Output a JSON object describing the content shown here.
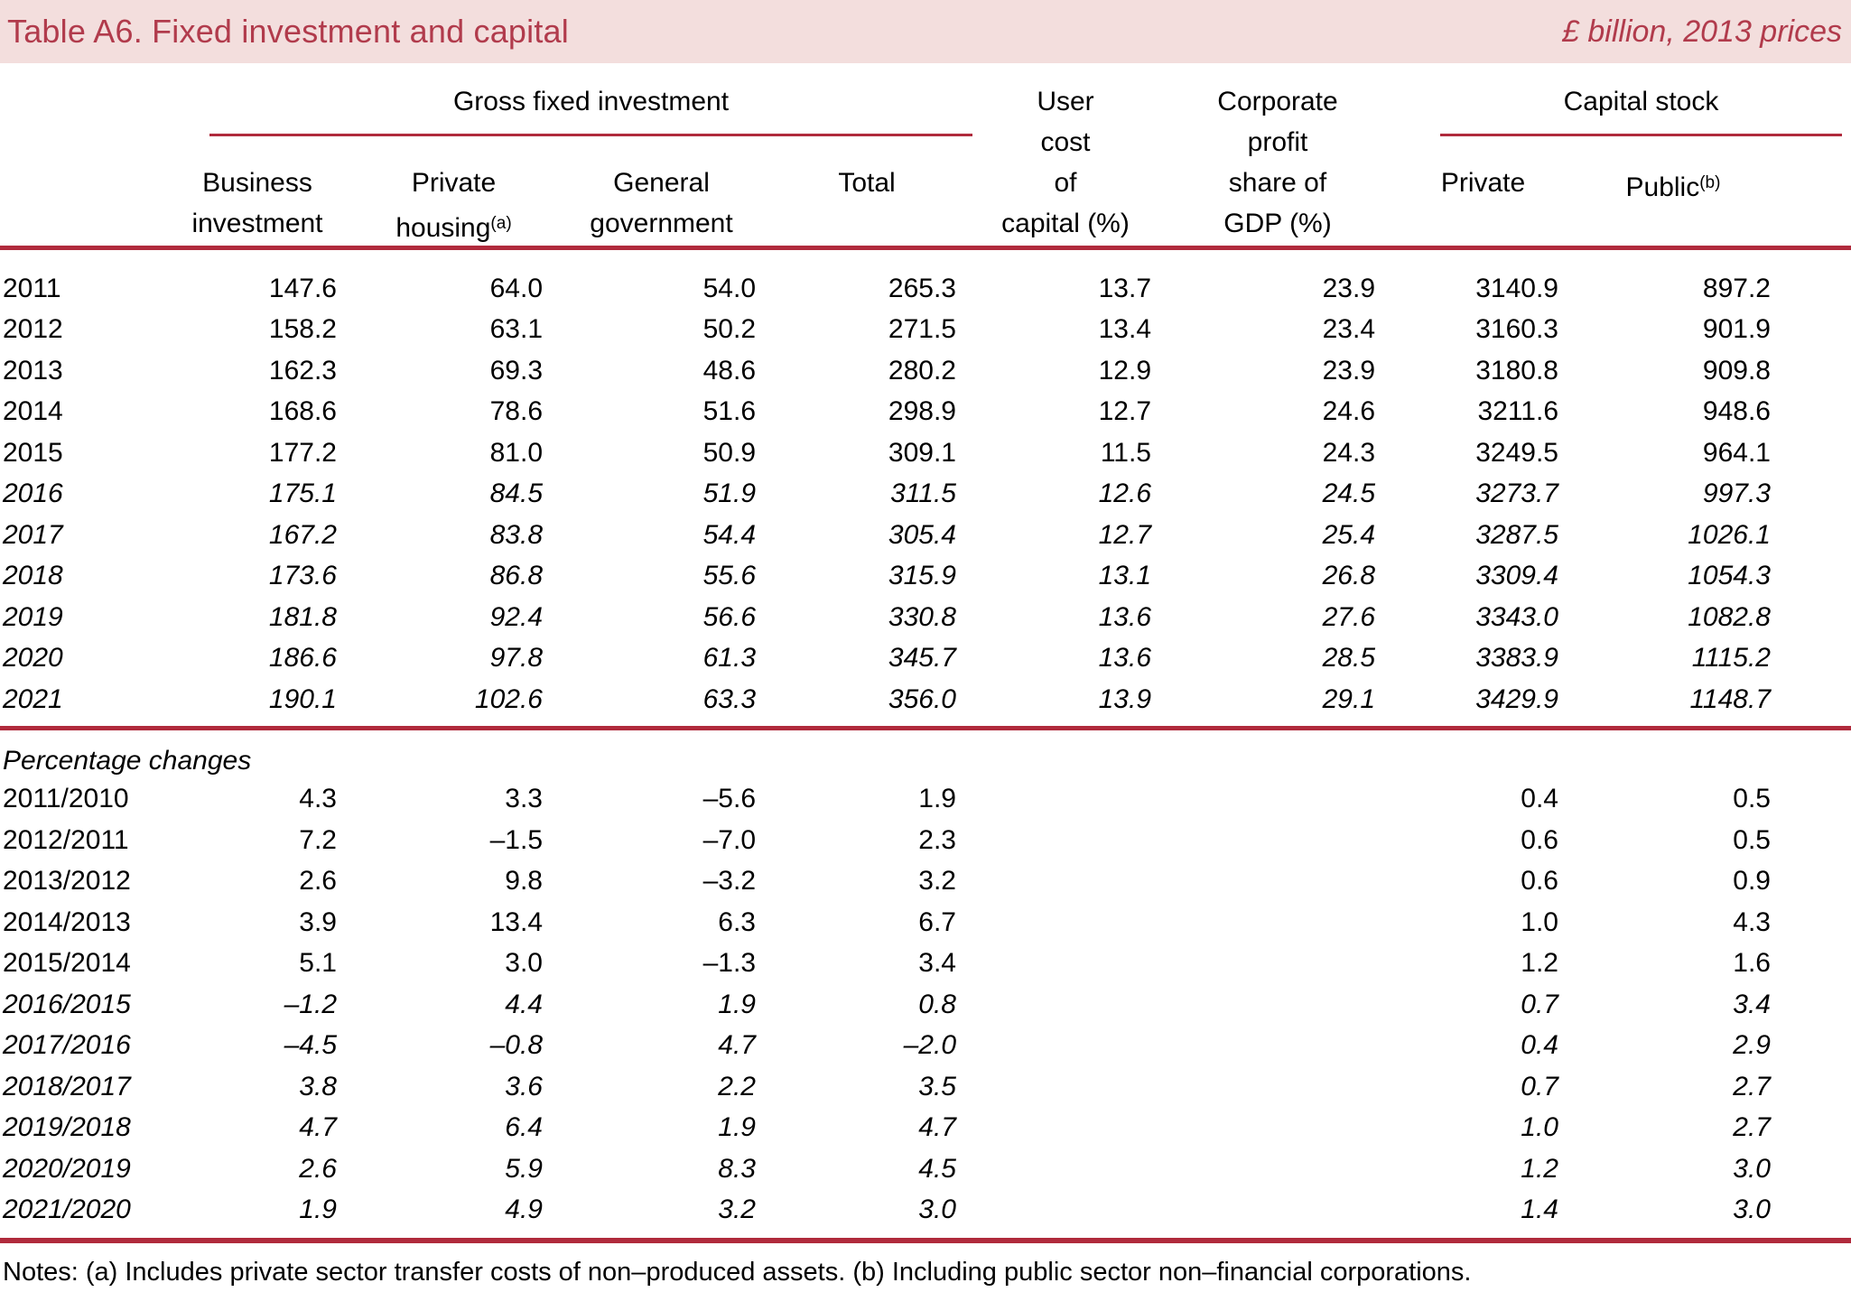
{
  "colors": {
    "accent": "#b02a3c",
    "title_text": "#b13b4c",
    "header_bar_bg": "#f3dedd",
    "text": "#000000",
    "background": "#ffffff"
  },
  "title_bar": {
    "title": "Table A6. Fixed investment and capital",
    "unit": "£ billion, 2013 prices"
  },
  "table": {
    "header": {
      "group_gfi": "Gross fixed investment",
      "group_capital": "Capital stock",
      "user_cost_lines": [
        "User",
        "cost",
        "of",
        "capital (%)"
      ],
      "corporate_lines": [
        "Corporate",
        "profit",
        "share of",
        "GDP (%)"
      ],
      "business_lines": [
        "Business",
        "investment"
      ],
      "housing_lines": [
        "Private",
        "housing"
      ],
      "housing_sup": "(a)",
      "government_lines": [
        "General",
        "government"
      ],
      "total": "Total",
      "private": "Private",
      "public": "Public",
      "public_sup": "(b)"
    },
    "annual_rows": [
      {
        "label": "2011",
        "italic": false,
        "values": [
          "147.6",
          "64.0",
          "54.0",
          "265.3",
          "13.7",
          "23.9",
          "3140.9",
          "897.2"
        ]
      },
      {
        "label": "2012",
        "italic": false,
        "values": [
          "158.2",
          "63.1",
          "50.2",
          "271.5",
          "13.4",
          "23.4",
          "3160.3",
          "901.9"
        ]
      },
      {
        "label": "2013",
        "italic": false,
        "values": [
          "162.3",
          "69.3",
          "48.6",
          "280.2",
          "12.9",
          "23.9",
          "3180.8",
          "909.8"
        ]
      },
      {
        "label": "2014",
        "italic": false,
        "values": [
          "168.6",
          "78.6",
          "51.6",
          "298.9",
          "12.7",
          "24.6",
          "3211.6",
          "948.6"
        ]
      },
      {
        "label": "2015",
        "italic": false,
        "values": [
          "177.2",
          "81.0",
          "50.9",
          "309.1",
          "11.5",
          "24.3",
          "3249.5",
          "964.1"
        ]
      },
      {
        "label": "2016",
        "italic": true,
        "values": [
          "175.1",
          "84.5",
          "51.9",
          "311.5",
          "12.6",
          "24.5",
          "3273.7",
          "997.3"
        ]
      },
      {
        "label": "2017",
        "italic": true,
        "values": [
          "167.2",
          "83.8",
          "54.4",
          "305.4",
          "12.7",
          "25.4",
          "3287.5",
          "1026.1"
        ]
      },
      {
        "label": "2018",
        "italic": true,
        "values": [
          "173.6",
          "86.8",
          "55.6",
          "315.9",
          "13.1",
          "26.8",
          "3309.4",
          "1054.3"
        ]
      },
      {
        "label": "2019",
        "italic": true,
        "values": [
          "181.8",
          "92.4",
          "56.6",
          "330.8",
          "13.6",
          "27.6",
          "3343.0",
          "1082.8"
        ]
      },
      {
        "label": "2020",
        "italic": true,
        "values": [
          "186.6",
          "97.8",
          "61.3",
          "345.7",
          "13.6",
          "28.5",
          "3383.9",
          "1115.2"
        ]
      },
      {
        "label": "2021",
        "italic": true,
        "values": [
          "190.1",
          "102.6",
          "63.3",
          "356.0",
          "13.9",
          "29.1",
          "3429.9",
          "1148.7"
        ]
      }
    ],
    "section_label": "Percentage changes",
    "change_rows": [
      {
        "label": "2011/2010",
        "italic": false,
        "values": [
          "4.3",
          "3.3",
          "–5.6",
          "1.9",
          "",
          "",
          "0.4",
          "0.5"
        ]
      },
      {
        "label": "2012/2011",
        "italic": false,
        "values": [
          "7.2",
          "–1.5",
          "–7.0",
          "2.3",
          "",
          "",
          "0.6",
          "0.5"
        ]
      },
      {
        "label": "2013/2012",
        "italic": false,
        "values": [
          "2.6",
          "9.8",
          "–3.2",
          "3.2",
          "",
          "",
          "0.6",
          "0.9"
        ]
      },
      {
        "label": "2014/2013",
        "italic": false,
        "values": [
          "3.9",
          "13.4",
          "6.3",
          "6.7",
          "",
          "",
          "1.0",
          "4.3"
        ]
      },
      {
        "label": "2015/2014",
        "italic": false,
        "values": [
          "5.1",
          "3.0",
          "–1.3",
          "3.4",
          "",
          "",
          "1.2",
          "1.6"
        ]
      },
      {
        "label": "2016/2015",
        "italic": true,
        "values": [
          "–1.2",
          "4.4",
          "1.9",
          "0.8",
          "",
          "",
          "0.7",
          "3.4"
        ]
      },
      {
        "label": "2017/2016",
        "italic": true,
        "values": [
          "–4.5",
          "–0.8",
          "4.7",
          "–2.0",
          "",
          "",
          "0.4",
          "2.9"
        ]
      },
      {
        "label": "2018/2017",
        "italic": true,
        "values": [
          "3.8",
          "3.6",
          "2.2",
          "3.5",
          "",
          "",
          "0.7",
          "2.7"
        ]
      },
      {
        "label": "2019/2018",
        "italic": true,
        "values": [
          "4.7",
          "6.4",
          "1.9",
          "4.7",
          "",
          "",
          "1.0",
          "2.7"
        ]
      },
      {
        "label": "2020/2019",
        "italic": true,
        "values": [
          "2.6",
          "5.9",
          "8.3",
          "4.5",
          "",
          "",
          "1.2",
          "3.0"
        ]
      },
      {
        "label": "2021/2020",
        "italic": true,
        "values": [
          "1.9",
          "4.9",
          "3.2",
          "3.0",
          "",
          "",
          "1.4",
          "3.0"
        ]
      }
    ],
    "notes": "Notes: (a) Includes private sector transfer costs of non–produced assets. (b) Including public sector non–financial corporations."
  }
}
